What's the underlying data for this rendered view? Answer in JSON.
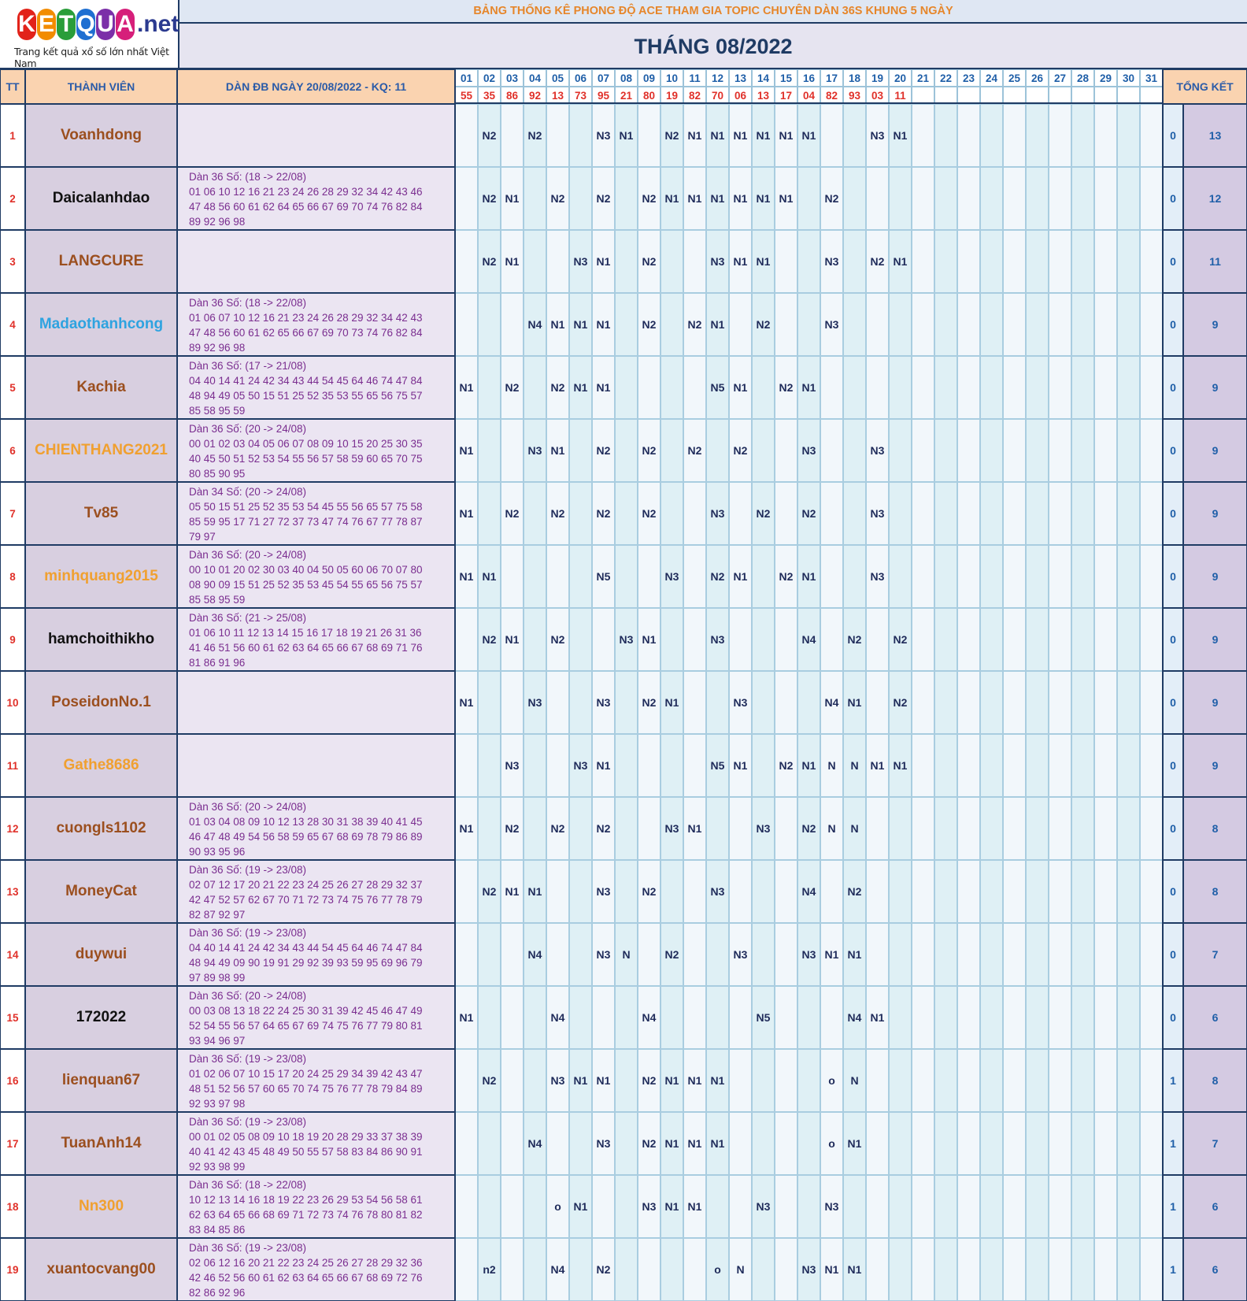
{
  "logo": {
    "letters": [
      "K",
      "E",
      "T",
      "Q",
      "U",
      "A"
    ],
    "letter_colors": [
      "#e2231a",
      "#f28c00",
      "#2a9d3a",
      "#1f6fd1",
      "#7b2fa8",
      "#d61f7a"
    ],
    "suffix": ".net",
    "tagline": "Trang kết quả xổ số lớn nhất Việt Nam"
  },
  "banner": "BẢNG THỐNG KÊ PHONG ĐỘ ACE THAM GIA TOPIC CHUYÊN DÀN 36S KHUNG 5 NGÀY",
  "month_title": "THÁNG 08/2022",
  "headers": {
    "tt": "TT",
    "member": "THÀNH VIÊN",
    "dan": "DÀN ĐB NGÀY 20/08/2022 - KQ: 11",
    "total": "TỔNG KẾT"
  },
  "days": [
    "01",
    "02",
    "03",
    "04",
    "05",
    "06",
    "07",
    "08",
    "09",
    "10",
    "11",
    "12",
    "13",
    "14",
    "15",
    "16",
    "17",
    "18",
    "19",
    "20",
    "21",
    "22",
    "23",
    "24",
    "25",
    "26",
    "27",
    "28",
    "29",
    "30",
    "31"
  ],
  "results": [
    "55",
    "35",
    "86",
    "92",
    "13",
    "73",
    "95",
    "21",
    "80",
    "19",
    "82",
    "70",
    "06",
    "13",
    "17",
    "04",
    "82",
    "93",
    "03",
    "11",
    "",
    "",
    "",
    "",
    "",
    "",
    "",
    "",
    "",
    "",
    ""
  ],
  "colors": {
    "brown": "#9b4f1f",
    "black": "#111111",
    "blue": "#2ea3e0",
    "orange": "#f0a030"
  },
  "rows": [
    {
      "tt": "1",
      "name": "Voanhdong",
      "color": "#9b4f1f",
      "dan": [],
      "marks": {
        "2": "N2",
        "4": "N2",
        "7": "N3",
        "8": "N1",
        "10": "N2",
        "11": "N1",
        "12": "N1",
        "13": "N1",
        "14": "N1",
        "15": "N1",
        "16": "N1",
        "19": "N3",
        "20": "N1"
      },
      "t1": "0",
      "t2": "13"
    },
    {
      "tt": "2",
      "name": "Daicalanhdao",
      "color": "#111111",
      "dan": [
        "Dàn 36 Số: (18 -> 22/08)",
        "01 06 10 12 16 21 23 24 26 28 29 32 34 42 43 46",
        "47 48 56 60 61 62 64 65 66 67 69 70 74 76 82 84",
        "89 92 96 98"
      ],
      "marks": {
        "2": "N2",
        "3": "N1",
        "5": "N2",
        "7": "N2",
        "9": "N2",
        "10": "N1",
        "11": "N1",
        "12": "N1",
        "13": "N1",
        "14": "N1",
        "15": "N1",
        "17": "N2"
      },
      "t1": "0",
      "t2": "12"
    },
    {
      "tt": "3",
      "name": "LANGCURE",
      "color": "#9b4f1f",
      "dan": [],
      "marks": {
        "2": "N2",
        "3": "N1",
        "6": "N3",
        "7": "N1",
        "9": "N2",
        "12": "N3",
        "13": "N1",
        "14": "N1",
        "17": "N3",
        "19": "N2",
        "20": "N1"
      },
      "t1": "0",
      "t2": "11"
    },
    {
      "tt": "4",
      "name": "Madaothanhcong",
      "color": "#2ea3e0",
      "dan": [
        "Dàn 36 Số: (18 -> 22/08)",
        "01 06 07 10 12 16 21 23 24 26 28 29 32 34 42 43",
        "47 48 56 60 61 62 65 66 67 69 70 73 74 76 82 84",
        "89 92 96 98"
      ],
      "marks": {
        "4": "N4",
        "5": "N1",
        "6": "N1",
        "7": "N1",
        "9": "N2",
        "11": "N2",
        "12": "N1",
        "14": "N2",
        "17": "N3"
      },
      "t1": "0",
      "t2": "9"
    },
    {
      "tt": "5",
      "name": "Kachia",
      "color": "#9b4f1f",
      "dan": [
        "Dàn 36 Số: (17 -> 21/08)",
        "04 40 14 41 24 42 34 43 44 54 45 64 46 74 47 84",
        "48 94 49 05 50 15 51 25 52 35 53 55 65 56 75 57",
        "85 58 95 59"
      ],
      "marks": {
        "1": "N1",
        "3": "N2",
        "5": "N2",
        "6": "N1",
        "7": "N1",
        "12": "N5",
        "13": "N1",
        "15": "N2",
        "16": "N1"
      },
      "t1": "0",
      "t2": "9"
    },
    {
      "tt": "6",
      "name": "CHIENTHANG2021",
      "color": "#f0a030",
      "dan": [
        "Dàn 36 Số: (20 -> 24/08)",
        "00 01 02 03 04 05 06 07 08 09 10 15 20 25 30 35",
        "40 45 50 51 52 53 54 55 56 57 58 59 60 65 70 75",
        "80 85 90 95"
      ],
      "marks": {
        "1": "N1",
        "4": "N3",
        "5": "N1",
        "7": "N2",
        "9": "N2",
        "11": "N2",
        "13": "N2",
        "16": "N3",
        "19": "N3"
      },
      "t1": "0",
      "t2": "9"
    },
    {
      "tt": "7",
      "name": "Tv85",
      "color": "#9b4f1f",
      "dan": [
        "Dàn 34 Số: (20 -> 24/08)",
        "05 50 15 51 25 52 35 53 54 45 55 56 65 57 75 58",
        "85 59 95 17 71 27 72 37 73 47 74 76 67 77 78 87",
        "79 97"
      ],
      "marks": {
        "1": "N1",
        "3": "N2",
        "5": "N2",
        "7": "N2",
        "9": "N2",
        "12": "N3",
        "14": "N2",
        "16": "N2",
        "19": "N3"
      },
      "t1": "0",
      "t2": "9"
    },
    {
      "tt": "8",
      "name": "minhquang2015",
      "color": "#f0a030",
      "dan": [
        "Dàn 36 Số: (20 -> 24/08)",
        "00 10 01 20 02 30 03 40 04 50 05 60 06 70 07 80",
        "08 90 09 15 51 25 52 35 53 45 54 55 65 56 75 57",
        "85 58 95 59"
      ],
      "marks": {
        "1": "N1",
        "2": "N1",
        "7": "N5",
        "10": "N3",
        "12": "N2",
        "13": "N1",
        "15": "N2",
        "16": "N1",
        "19": "N3"
      },
      "t1": "0",
      "t2": "9"
    },
    {
      "tt": "9",
      "name": "hamchoithikho",
      "color": "#111111",
      "dan": [
        "Dàn 36 Số: (21 -> 25/08)",
        "01 06 10 11 12 13 14 15 16 17 18 19 21 26 31 36",
        "41 46 51 56 60 61 62 63 64 65 66 67 68 69 71 76",
        "81 86 91 96"
      ],
      "marks": {
        "2": "N2",
        "3": "N1",
        "5": "N2",
        "8": "N3",
        "9": "N1",
        "12": "N3",
        "16": "N4",
        "18": "N2",
        "20": "N2"
      },
      "t1": "0",
      "t2": "9"
    },
    {
      "tt": "10",
      "name": "PoseidonNo.1",
      "color": "#9b4f1f",
      "dan": [],
      "marks": {
        "1": "N1",
        "4": "N3",
        "7": "N3",
        "9": "N2",
        "10": "N1",
        "13": "N3",
        "17": "N4",
        "18": "N1",
        "20": "N2"
      },
      "t1": "0",
      "t2": "9"
    },
    {
      "tt": "11",
      "name": "Gathe8686",
      "color": "#f0a030",
      "dan": [],
      "marks": {
        "3": "N3",
        "6": "N3",
        "7": "N1",
        "12": "N5",
        "13": "N1",
        "15": "N2",
        "16": "N1",
        "17": "N",
        "18": "N",
        "19": "N1",
        "20": "N1"
      },
      "t1": "0",
      "t2": "9"
    },
    {
      "tt": "12",
      "name": "cuongls1102",
      "color": "#9b4f1f",
      "dan": [
        "Dàn 36 Số: (20 -> 24/08)",
        "01 03 04 08 09 10 12 13 28 30 31 38 39 40 41 45",
        "46 47 48 49 54 56 58 59 65 67 68 69 78 79 86 89",
        "90 93 95 96"
      ],
      "marks": {
        "1": "N1",
        "3": "N2",
        "5": "N2",
        "7": "N2",
        "10": "N3",
        "11": "N1",
        "14": "N3",
        "16": "N2",
        "17": "N",
        "18": "N"
      },
      "t1": "0",
      "t2": "8"
    },
    {
      "tt": "13",
      "name": "MoneyCat",
      "color": "#9b4f1f",
      "dan": [
        "Dàn 36 Số: (19 -> 23/08)",
        "02 07 12 17 20 21 22 23 24 25 26 27 28 29 32 37",
        "42 47 52 57 62 67 70 71 72 73 74 75 76 77 78 79",
        "82 87 92 97"
      ],
      "marks": {
        "2": "N2",
        "3": "N1",
        "4": "N1",
        "7": "N3",
        "9": "N2",
        "12": "N3",
        "16": "N4",
        "18": "N2"
      },
      "t1": "0",
      "t2": "8"
    },
    {
      "tt": "14",
      "name": "duywui",
      "color": "#9b4f1f",
      "dan": [
        "Dàn 36 Số: (19 -> 23/08)",
        "04 40 14 41 24 42 34 43 44 54 45 64 46 74 47 84",
        "48 94 49 09 90 19 91 29 92 39 93 59 95 69 96 79",
        "97 89 98 99"
      ],
      "marks": {
        "4": "N4",
        "7": "N3",
        "8": "N",
        "10": "N2",
        "13": "N3",
        "16": "N3",
        "17": "N1",
        "18": "N1"
      },
      "t1": "0",
      "t2": "7"
    },
    {
      "tt": "15",
      "name": "172022",
      "color": "#111111",
      "dan": [
        "Dàn 36 Số: (20 -> 24/08)",
        "00 03 08 13 18 22 24 25 30 31 39 42 45 46 47 49",
        "52 54 55 56 57 64 65 67 69 74 75 76 77 79 80 81",
        "93 94 96 97"
      ],
      "marks": {
        "1": "N1",
        "5": "N4",
        "9": "N4",
        "14": "N5",
        "18": "N4",
        "19": "N1"
      },
      "t1": "0",
      "t2": "6"
    },
    {
      "tt": "16",
      "name": "lienquan67",
      "color": "#9b4f1f",
      "dan": [
        "Dàn 36 Số: (19 -> 23/08)",
        "01 02 06 07 10 15 17 20 24 25 29 34 39 42 43 47",
        "48 51 52 56 57 60 65 70 74 75 76 77 78 79 84 89",
        "92 93 97 98"
      ],
      "marks": {
        "2": "N2",
        "5": "N3",
        "6": "N1",
        "7": "N1",
        "9": "N2",
        "10": "N1",
        "11": "N1",
        "12": "N1",
        "17": "o",
        "18": "N"
      },
      "t1": "1",
      "t2": "8"
    },
    {
      "tt": "17",
      "name": "TuanAnh14",
      "color": "#9b4f1f",
      "dan": [
        "Dàn 36 Số: (19 -> 23/08)",
        "00 01 02 05 08 09 10 18 19 20 28 29 33 37 38 39",
        "40 41 42 43 45 48 49 50 55 57 58 83 84 86 90 91",
        "92 93 98 99"
      ],
      "marks": {
        "4": "N4",
        "7": "N3",
        "9": "N2",
        "10": "N1",
        "11": "N1",
        "12": "N1",
        "17": "o",
        "18": "N1"
      },
      "t1": "1",
      "t2": "7"
    },
    {
      "tt": "18",
      "name": "Nn300",
      "color": "#f0a030",
      "dan": [
        "Dàn 36 Số: (18 -> 22/08)",
        "10 12 13 14 16 18 19 22 23 26 29 53 54 56 58 61",
        "62 63 64 65 66 68 69 71 72 73 74 76 78 80 81 82",
        "83 84 85 86"
      ],
      "marks": {
        "5": "o",
        "6": "N1",
        "9": "N3",
        "10": "N1",
        "11": "N1",
        "14": "N3",
        "17": "N3"
      },
      "t1": "1",
      "t2": "6"
    },
    {
      "tt": "19",
      "name": "xuantocvang00",
      "color": "#9b4f1f",
      "dan": [
        "Dàn 36 Số: (19 -> 23/08)",
        "02 06 12 16 20 21 22 23 24 25 26 27 28 29 32 36",
        "42 46 52 56 60 61 62 63 64 65 66 67 68 69 72 76",
        "82 86 92 96"
      ],
      "marks": {
        "2": "n2",
        "5": "N4",
        "7": "N2",
        "12": "o",
        "13": "N",
        "16": "N3",
        "17": "N1",
        "18": "N1"
      },
      "t1": "1",
      "t2": "6"
    }
  ]
}
